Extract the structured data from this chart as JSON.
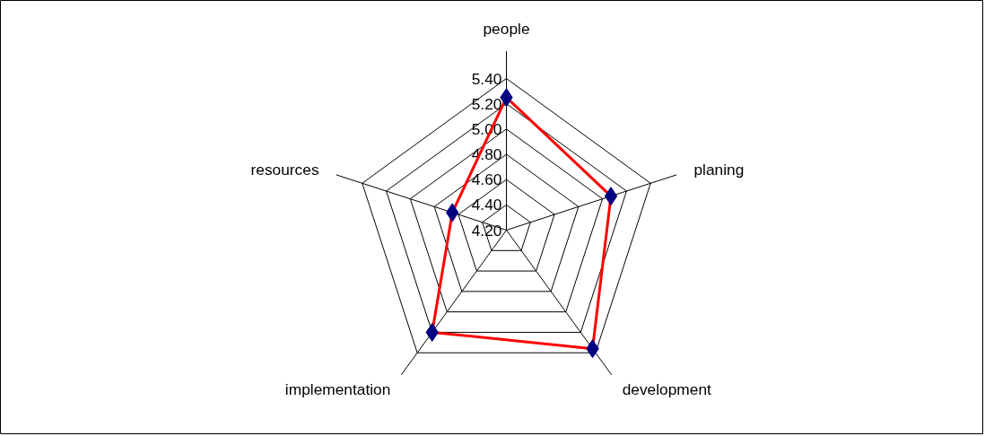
{
  "chart_data": {
    "type": "radar",
    "categories": [
      "people",
      "planing",
      "development",
      "implementation",
      "resources"
    ],
    "series": [
      {
        "color": "#ff0000",
        "colors": [
          "#000080",
          "#000080",
          "#000080",
          "#000080",
          "#000080"
        ],
        "values": [
          5.25,
          5.07,
          5.36,
          5.2,
          4.65
        ]
      }
    ],
    "ylim": [
      4.2,
      5.4
    ],
    "yticks": [
      {
        "value": 4.2,
        "label": "4.20"
      },
      {
        "value": 4.4,
        "label": "4.40"
      },
      {
        "value": 4.6,
        "label": "4.60"
      },
      {
        "value": 4.8,
        "label": "4.80"
      },
      {
        "value": 5.0,
        "label": "5.00"
      },
      {
        "value": 5.2,
        "label": "5.20"
      },
      {
        "value": 5.4,
        "label": "5.40"
      }
    ],
    "grid": true,
    "marker": "diamond",
    "line_style": "solid"
  }
}
